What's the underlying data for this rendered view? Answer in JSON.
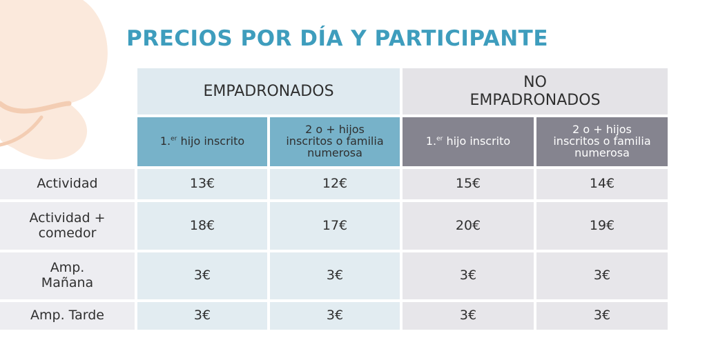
{
  "title": "PRECIOS POR DÍA Y PARTICIPANTE",
  "groups": {
    "empadronados": "EMPADRONADOS",
    "no_empadronados_line1": "NO",
    "no_empadronados_line2": "EMPADRONADOS"
  },
  "subheaders": {
    "first_prefix": "1.",
    "first_sup": "er",
    "first_suffix": " hijo inscrito",
    "second_line1": "2 o + hijos",
    "second_line2": "inscritos o familia",
    "second_line3": "numerosa"
  },
  "rows": [
    {
      "label1": "Actividad",
      "label2": "",
      "values": [
        "13€",
        "12€",
        "15€",
        "14€"
      ]
    },
    {
      "label1": "Actividad +",
      "label2": "comedor",
      "values": [
        "18€",
        "17€",
        "20€",
        "19€"
      ]
    },
    {
      "label1": "Amp.",
      "label2": "Mañana",
      "values": [
        "3€",
        "3€",
        "3€",
        "3€"
      ]
    },
    {
      "label1": "Amp. Tarde",
      "label2": "",
      "values": [
        "3€",
        "3€",
        "3€",
        "3€"
      ]
    }
  ],
  "colors": {
    "title": "#3e9dbd",
    "empadronados_header": "#dfeaf0",
    "empadronados_subheader": "#77b2c9",
    "no_empadronados_header": "#e4e3e7",
    "no_empadronados_subheader": "#85848f",
    "row_label_bg": "#ededf1",
    "decoration": "#f7dcc8"
  },
  "decoration_icon": "peach-blob-decoration"
}
